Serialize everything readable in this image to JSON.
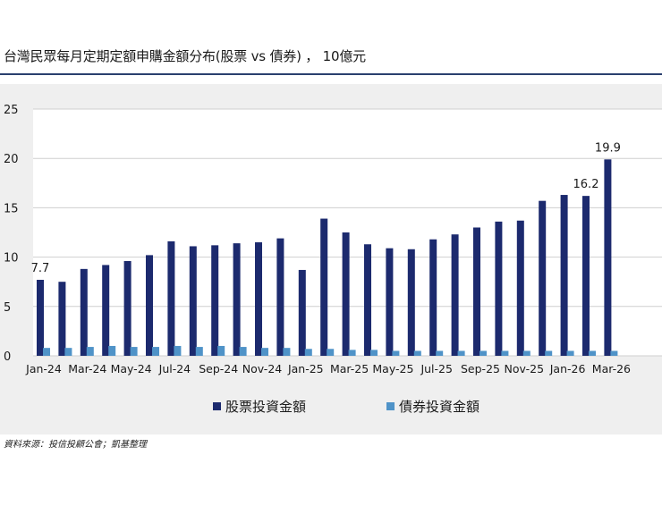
{
  "title": "台灣民眾每月定期定額申購金額分布(股票 vs 債券) ， 10億元",
  "source": "資料來源：投信投顧公會；凱基整理",
  "colors": {
    "equity": "#1c2a6e",
    "bond": "#4f93c8",
    "grid": "#cfcfcf",
    "background": "#efefef",
    "plot_background": "#ffffff"
  },
  "chart_data": {
    "type": "bar",
    "categories": [
      "Jan-24",
      "Feb-24",
      "Mar-24",
      "Apr-24",
      "May-24",
      "Jun-24",
      "Jul-24",
      "Aug-24",
      "Sep-24",
      "Oct-24",
      "Nov-24",
      "Dec-24",
      "Jan-25",
      "Feb-25",
      "Mar-25",
      "Apr-25",
      "May-25",
      "Jun-25",
      "Jul-25",
      "Aug-25",
      "Sep-25",
      "Oct-25",
      "Nov-25",
      "Dec-25",
      "Jan-26",
      "Feb-26",
      "Mar-26"
    ],
    "x_tick_labels": [
      "Jan-24",
      "Mar-24",
      "May-24",
      "Jul-24",
      "Sep-24",
      "Nov-24",
      "Jan-25",
      "Mar-25",
      "May-25",
      "Jul-25",
      "Sep-25",
      "Nov-25",
      "Jan-26",
      "Mar-26"
    ],
    "series": [
      {
        "name": "股票投資金額",
        "values": [
          7.7,
          7.5,
          8.8,
          9.2,
          9.6,
          10.2,
          11.6,
          11.1,
          11.2,
          11.4,
          11.5,
          11.9,
          8.7,
          13.9,
          12.5,
          11.3,
          10.9,
          10.8,
          11.8,
          12.3,
          13.0,
          13.6,
          13.7,
          15.7,
          16.3,
          16.2,
          19.9
        ]
      },
      {
        "name": "債券投資金額",
        "values": [
          0.8,
          0.8,
          0.9,
          1.0,
          0.9,
          0.9,
          1.0,
          0.9,
          1.0,
          0.9,
          0.8,
          0.8,
          0.7,
          0.7,
          0.6,
          0.6,
          0.5,
          0.5,
          0.5,
          0.5,
          0.5,
          0.5,
          0.5,
          0.5,
          0.5,
          0.5,
          0.5
        ]
      }
    ],
    "data_labels": [
      {
        "category": "Jan-24",
        "text": "7.7"
      },
      {
        "category": "Feb-26",
        "text": "16.2"
      },
      {
        "category": "Mar-26",
        "text": "19.9"
      }
    ],
    "ylim": [
      0,
      25
    ],
    "yticks": [
      0,
      5,
      10,
      15,
      20,
      25
    ],
    "grid": true,
    "legend_position": "bottom-center",
    "xlabel": "",
    "ylabel": ""
  }
}
